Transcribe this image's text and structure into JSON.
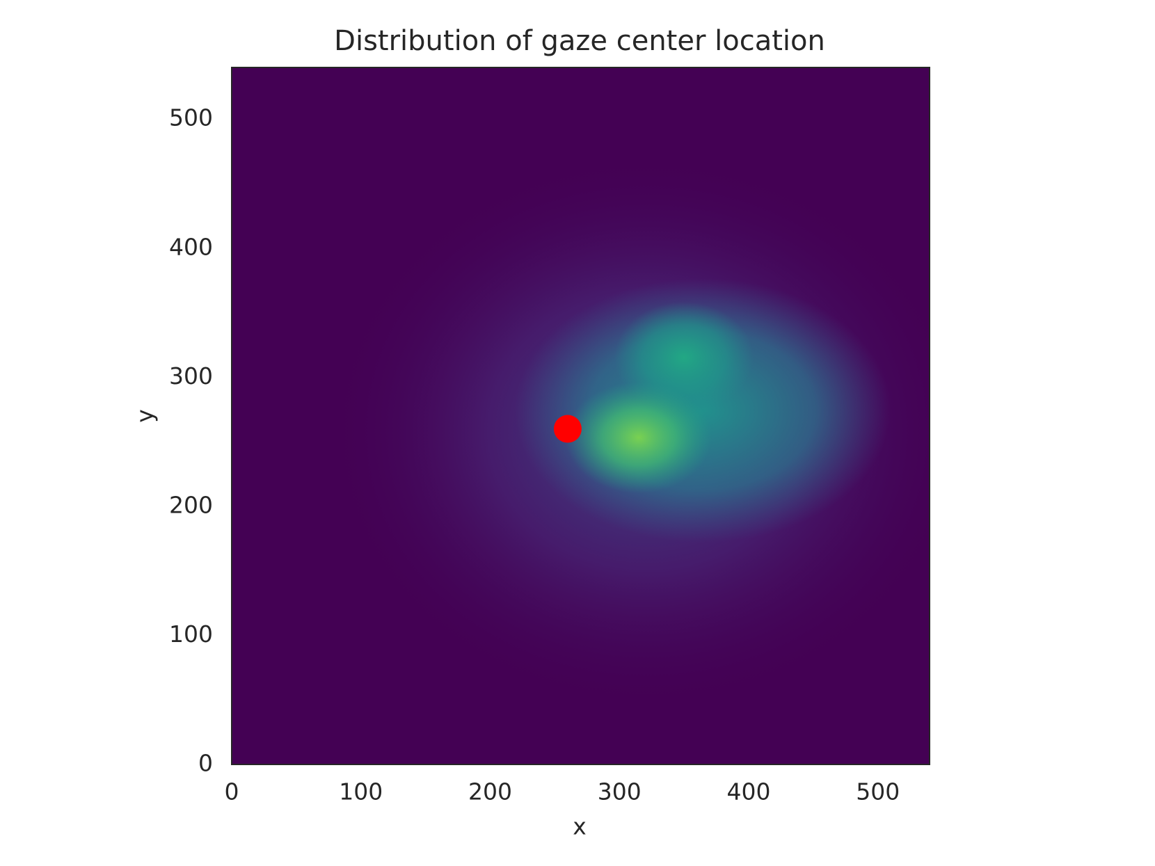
{
  "chart_data": {
    "type": "scatter",
    "title": "Distribution of gaze center location",
    "x_label": "x",
    "y_label": "y",
    "x": [
      260
    ],
    "values": [
      260
    ],
    "color": "#ff0000",
    "xlim": [
      0,
      540
    ],
    "ylim": [
      0,
      540
    ],
    "xticks": [
      0,
      100,
      200,
      300,
      400,
      500
    ],
    "yticks": [
      0,
      100,
      200,
      300,
      400,
      500
    ],
    "grid": false
  }
}
